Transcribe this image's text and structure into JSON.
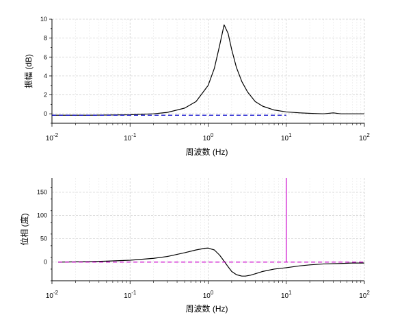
{
  "chart_data": [
    {
      "type": "line",
      "xlabel": "周波数 (Hz)",
      "ylabel": "振幅 (dB)",
      "xscale": "log",
      "xlim": [
        0.01,
        100
      ],
      "ylim": [
        -1,
        10
      ],
      "grid": true,
      "x_ticks": [
        {
          "base": "10",
          "exp": "-2",
          "value": 0.01
        },
        {
          "base": "10",
          "exp": "-1",
          "value": 0.1
        },
        {
          "base": "10",
          "exp": "0",
          "value": 1
        },
        {
          "base": "10",
          "exp": "1",
          "value": 10
        },
        {
          "base": "10",
          "exp": "2",
          "value": 100
        }
      ],
      "y_ticks": [
        "0",
        "2",
        "4",
        "6",
        "8",
        "10"
      ],
      "series": [
        {
          "color": "#000000",
          "style": "solid",
          "x": [
            0.01,
            0.03,
            0.1,
            0.2,
            0.3,
            0.5,
            0.7,
            1.0,
            1.2,
            1.4,
            1.6,
            1.8,
            2.0,
            2.3,
            2.7,
            3.2,
            4,
            5,
            7,
            10,
            15,
            20,
            30,
            40,
            50,
            70,
            100
          ],
          "y": [
            -0.15,
            -0.15,
            -0.1,
            0.0,
            0.15,
            0.6,
            1.3,
            3.0,
            4.8,
            7.2,
            9.4,
            8.5,
            6.8,
            4.9,
            3.4,
            2.3,
            1.3,
            0.8,
            0.4,
            0.2,
            0.1,
            0.05,
            0.0,
            0.1,
            0.0,
            0.0,
            0.0
          ]
        },
        {
          "color": "#0000cc",
          "style": "dashed",
          "x": [
            0.01,
            10
          ],
          "y": [
            -0.15,
            -0.15
          ]
        }
      ]
    },
    {
      "type": "line",
      "xlabel": "周波数 (Hz)",
      "ylabel": "位相 (度)",
      "xscale": "log",
      "xlim": [
        0.01,
        100
      ],
      "ylim": [
        -40,
        180
      ],
      "grid": true,
      "x_ticks": [
        {
          "base": "10",
          "exp": "-2",
          "value": 0.01
        },
        {
          "base": "10",
          "exp": "-1",
          "value": 0.1
        },
        {
          "base": "10",
          "exp": "0",
          "value": 1
        },
        {
          "base": "10",
          "exp": "1",
          "value": 10
        },
        {
          "base": "10",
          "exp": "2",
          "value": 100
        }
      ],
      "y_ticks": [
        "0",
        "50",
        "100",
        "150"
      ],
      "series": [
        {
          "color": "#000000",
          "style": "solid",
          "x": [
            0.012,
            0.03,
            0.05,
            0.1,
            0.2,
            0.3,
            0.5,
            0.7,
            0.9,
            1.0,
            1.2,
            1.4,
            1.6,
            1.8,
            2.0,
            2.3,
            2.7,
            3.0,
            3.5,
            4,
            5,
            7,
            10,
            15,
            20,
            30,
            50,
            70,
            100
          ],
          "y": [
            0,
            1,
            2,
            4,
            8,
            12,
            20,
            26,
            29.5,
            30,
            26,
            15,
            2,
            -10,
            -20,
            -27,
            -30,
            -30,
            -28,
            -25,
            -20,
            -15,
            -12,
            -8,
            -6,
            -4,
            -3,
            -2,
            -2
          ]
        },
        {
          "color": "#cc00cc",
          "style": "dashed",
          "x": [
            0.012,
            100
          ],
          "y": [
            0,
            0
          ]
        },
        {
          "color": "#cc00cc",
          "style": "solid",
          "x": [
            10,
            10
          ],
          "y": [
            0,
            180
          ]
        }
      ]
    }
  ]
}
